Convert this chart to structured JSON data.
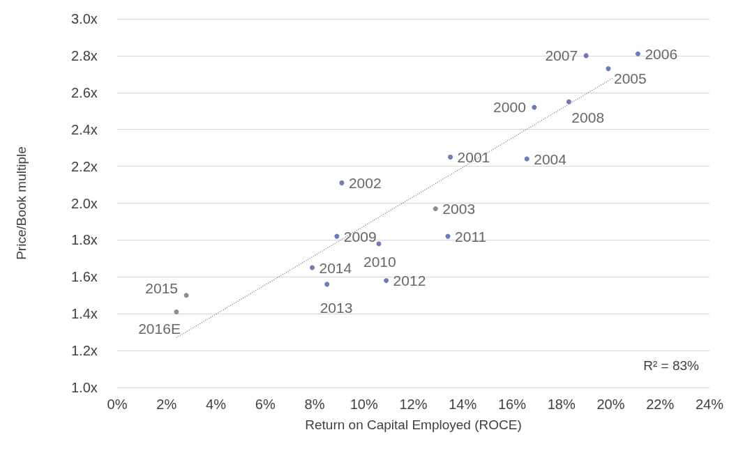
{
  "chart_data": {
    "type": "scatter",
    "xlabel": "Return on Capital Employed (ROCE)",
    "ylabel": "Price/Book multiple",
    "xlim": [
      0,
      24
    ],
    "xticks": [
      {
        "value": 0,
        "label": "0%"
      },
      {
        "value": 2,
        "label": "2%"
      },
      {
        "value": 4,
        "label": "4%"
      },
      {
        "value": 6,
        "label": "6%"
      },
      {
        "value": 8,
        "label": "8%"
      },
      {
        "value": 10,
        "label": "10%"
      },
      {
        "value": 12,
        "label": "12%"
      },
      {
        "value": 14,
        "label": "14%"
      },
      {
        "value": 16,
        "label": "16%"
      },
      {
        "value": 18,
        "label": "18%"
      },
      {
        "value": 20,
        "label": "20%"
      },
      {
        "value": 22,
        "label": "22%"
      },
      {
        "value": 24,
        "label": "24%"
      }
    ],
    "ylim": [
      1.0,
      3.0
    ],
    "yticks": [
      {
        "value": 1.0,
        "label": "1.0x"
      },
      {
        "value": 1.2,
        "label": "1.2x"
      },
      {
        "value": 1.4,
        "label": "1.4x"
      },
      {
        "value": 1.6,
        "label": "1.6x"
      },
      {
        "value": 1.8,
        "label": "1.8x"
      },
      {
        "value": 2.0,
        "label": "2.0x"
      },
      {
        "value": 2.2,
        "label": "2.2x"
      },
      {
        "value": 2.4,
        "label": "2.4x"
      },
      {
        "value": 2.6,
        "label": "2.6x"
      },
      {
        "value": 2.8,
        "label": "2.8x"
      },
      {
        "value": 3.0,
        "label": "3.0x"
      }
    ],
    "grid": "y",
    "series": [
      {
        "marker": "circle",
        "x": [
          16.9,
          13.5,
          9.1,
          12.9,
          16.6,
          19.9,
          21.1,
          19.0,
          18.3,
          8.9,
          10.6,
          13.4,
          10.9,
          8.5,
          7.9,
          2.8,
          2.4
        ],
        "values": [
          2.52,
          2.25,
          2.11,
          1.97,
          2.24,
          2.73,
          2.81,
          2.8,
          2.55,
          1.82,
          1.78,
          1.82,
          1.58,
          1.56,
          1.65,
          1.5,
          1.41
        ],
        "colors": [
          "#4a5aa8",
          "#4a5aa8",
          "#4a5aa8",
          "#707070",
          "#4a5aa8",
          "#4a5aa8",
          "#4a5aa8",
          "#4a5aa8",
          "#4a5aa8",
          "#4a5aa8",
          "#4a5aa8",
          "#4a5aa8",
          "#4a5aa8",
          "#4a5aa8",
          "#4a5aa8",
          "#707070",
          "#707070"
        ]
      },
      {
        "type": "line",
        "marker": "none",
        "line_style": "dotted",
        "color": "#5a6a8a",
        "x": [
          2.4,
          20.1
        ],
        "values": [
          1.27,
          2.68
        ]
      }
    ],
    "annotations": [
      {
        "text": "2000",
        "x": 16.9,
        "y": 2.52
      },
      {
        "text": "2001",
        "x": 13.5,
        "y": 2.25
      },
      {
        "text": "2002",
        "x": 9.1,
        "y": 2.11
      },
      {
        "text": "2003",
        "x": 12.9,
        "y": 1.97
      },
      {
        "text": "2004",
        "x": 16.6,
        "y": 2.24
      },
      {
        "text": "2005",
        "x": 19.9,
        "y": 2.73
      },
      {
        "text": "2006",
        "x": 21.1,
        "y": 2.81
      },
      {
        "text": "2007",
        "x": 19.0,
        "y": 2.8
      },
      {
        "text": "2008",
        "x": 18.3,
        "y": 2.55
      },
      {
        "text": "2009",
        "x": 8.9,
        "y": 1.82
      },
      {
        "text": "2010",
        "x": 10.6,
        "y": 1.78
      },
      {
        "text": "2011",
        "x": 13.4,
        "y": 1.82
      },
      {
        "text": "2012",
        "x": 10.9,
        "y": 1.58
      },
      {
        "text": "2013",
        "x": 8.5,
        "y": 1.56
      },
      {
        "text": "2014",
        "x": 7.9,
        "y": 1.65
      },
      {
        "text": "2015",
        "x": 2.8,
        "y": 1.5
      },
      {
        "text": "2016E",
        "x": 2.4,
        "y": 1.41
      },
      "R² = 83%"
    ]
  }
}
